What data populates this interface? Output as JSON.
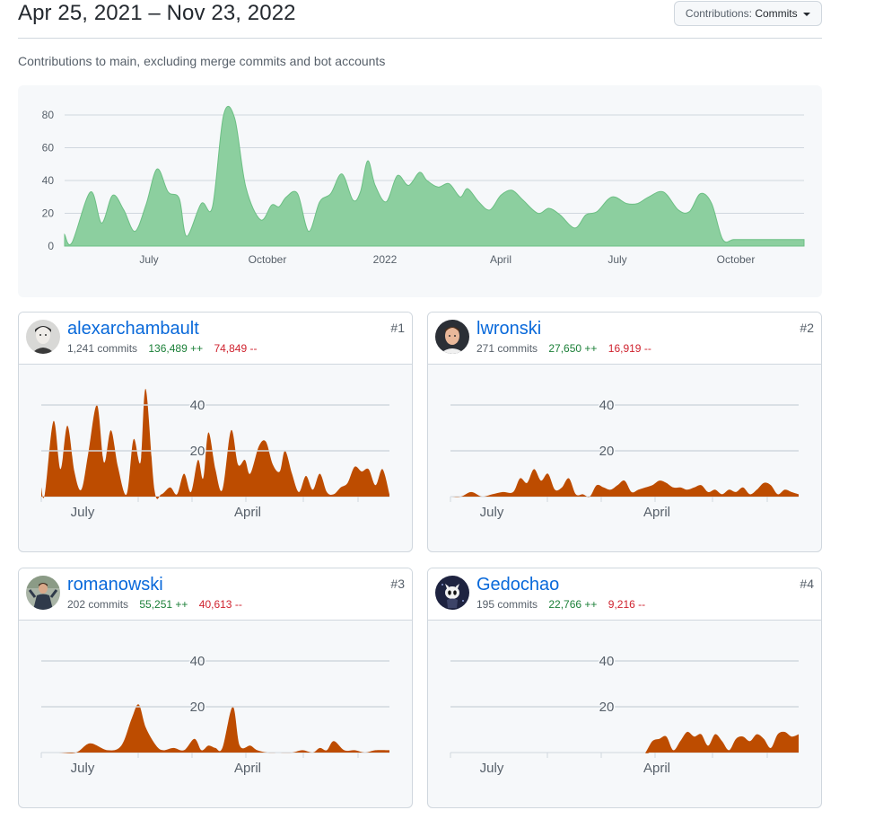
{
  "header": {
    "date_range": "Apr 25, 2021 – Nov 23, 2022",
    "contrib_label": "Contributions:",
    "contrib_value": "Commits"
  },
  "subtitle": "Contributions to main, excluding merge commits and bot accounts",
  "colors": {
    "main_fill": "#8ccf9f",
    "main_stroke": "#6cbf84",
    "user_fill": "#bd4c00",
    "link": "#0969da",
    "add": "#1a7f37",
    "del": "#cf222e"
  },
  "chart_data": [
    {
      "type": "area",
      "title": "Contributions to main, excluding merge commits and bot accounts",
      "x_labels": [
        "July",
        "October",
        "2022",
        "April",
        "July",
        "October"
      ],
      "y_ticks": [
        0,
        20,
        40,
        60,
        80
      ],
      "ylim": [
        0,
        85
      ],
      "x": [
        0,
        0.01,
        0.035,
        0.05,
        0.065,
        0.08,
        0.095,
        0.11,
        0.125,
        0.14,
        0.155,
        0.165,
        0.185,
        0.2,
        0.215,
        0.23,
        0.245,
        0.265,
        0.28,
        0.29,
        0.3,
        0.315,
        0.33,
        0.345,
        0.36,
        0.375,
        0.39,
        0.4,
        0.41,
        0.42,
        0.435,
        0.45,
        0.465,
        0.48,
        0.49,
        0.505,
        0.52,
        0.535,
        0.545,
        0.56,
        0.575,
        0.59,
        0.605,
        0.62,
        0.64,
        0.655,
        0.67,
        0.69,
        0.705,
        0.72,
        0.74,
        0.76,
        0.775,
        0.79,
        0.81,
        0.83,
        0.845,
        0.86,
        0.875,
        0.89,
        0.905,
        0.925,
        0.945,
        0.96,
        0.975,
        0.985,
        1
      ],
      "values": [
        7,
        2,
        33,
        14,
        31,
        22,
        9,
        25,
        47,
        33,
        29,
        6,
        26,
        24,
        80,
        78,
        36,
        16,
        25,
        24,
        30,
        32,
        9,
        27,
        32,
        44,
        28,
        33,
        52,
        37,
        27,
        43,
        37,
        45,
        40,
        36,
        38,
        30,
        35,
        27,
        22,
        31,
        34,
        28,
        20,
        23,
        19,
        11,
        19,
        21,
        30,
        26,
        26,
        30,
        33,
        22,
        21,
        32,
        26,
        4,
        4,
        4,
        4,
        4,
        4,
        4,
        4
      ]
    },
    {
      "type": "area",
      "series": "alexarchambault",
      "x_labels": [
        "July",
        "April"
      ],
      "y_ticks": [
        20,
        40
      ],
      "ylim": [
        0,
        48
      ],
      "x": [
        0,
        0.01,
        0.035,
        0.055,
        0.075,
        0.095,
        0.115,
        0.135,
        0.16,
        0.18,
        0.2,
        0.22,
        0.245,
        0.265,
        0.285,
        0.3,
        0.325,
        0.345,
        0.37,
        0.39,
        0.41,
        0.43,
        0.45,
        0.465,
        0.48,
        0.5,
        0.52,
        0.545,
        0.565,
        0.585,
        0.6,
        0.625,
        0.645,
        0.665,
        0.685,
        0.7,
        0.72,
        0.74,
        0.76,
        0.78,
        0.8,
        0.82,
        0.84,
        0.86,
        0.88,
        0.9,
        0.92,
        0.94,
        0.96,
        0.98,
        1
      ],
      "values": [
        4,
        1,
        33,
        12,
        31,
        11,
        3,
        19,
        40,
        15,
        29,
        13,
        1,
        25,
        15,
        47,
        3,
        1,
        4,
        1,
        10,
        2,
        16,
        8,
        28,
        12,
        3,
        29,
        14,
        16,
        10,
        22,
        24,
        14,
        11,
        20,
        10,
        2,
        9,
        3,
        10,
        2,
        1,
        4,
        6,
        13,
        11,
        12,
        5,
        12,
        1
      ]
    },
    {
      "type": "area",
      "series": "lwronski",
      "x_labels": [
        "July",
        "April"
      ],
      "y_ticks": [
        20,
        40
      ],
      "ylim": [
        0,
        48
      ],
      "x": [
        0,
        0.03,
        0.06,
        0.09,
        0.12,
        0.15,
        0.18,
        0.2,
        0.22,
        0.24,
        0.26,
        0.28,
        0.3,
        0.32,
        0.34,
        0.36,
        0.38,
        0.4,
        0.42,
        0.44,
        0.46,
        0.48,
        0.5,
        0.52,
        0.54,
        0.56,
        0.58,
        0.6,
        0.62,
        0.64,
        0.66,
        0.68,
        0.7,
        0.72,
        0.74,
        0.76,
        0.78,
        0.8,
        0.82,
        0.84,
        0.86,
        0.88,
        0.9,
        0.92,
        0.94,
        0.96,
        0.98,
        1
      ],
      "values": [
        0,
        0,
        2,
        0,
        1,
        2,
        2,
        8,
        6,
        12,
        7,
        10,
        3,
        4,
        8,
        1,
        1,
        0,
        5,
        4,
        3,
        5,
        7,
        2,
        3,
        4,
        5,
        7,
        6,
        4,
        4,
        3,
        4,
        5,
        2,
        3,
        1,
        3,
        2,
        4,
        1,
        3,
        6,
        5,
        1,
        3,
        2,
        1
      ]
    },
    {
      "type": "area",
      "series": "romanowski",
      "x_labels": [
        "July",
        "April"
      ],
      "y_ticks": [
        20,
        40
      ],
      "ylim": [
        0,
        48
      ],
      "x": [
        0,
        0.05,
        0.1,
        0.14,
        0.19,
        0.23,
        0.26,
        0.28,
        0.3,
        0.33,
        0.35,
        0.38,
        0.41,
        0.44,
        0.46,
        0.48,
        0.5,
        0.52,
        0.55,
        0.57,
        0.6,
        0.62,
        0.65,
        0.68,
        0.72,
        0.75,
        0.78,
        0.8,
        0.82,
        0.84,
        0.87,
        0.9,
        0.93,
        0.96,
        1
      ],
      "values": [
        0,
        0,
        0,
        4,
        1,
        3,
        15,
        21,
        11,
        3,
        1,
        2,
        1,
        6,
        1,
        3,
        2,
        2,
        20,
        3,
        3,
        1,
        0,
        0,
        0,
        1,
        0,
        2,
        1,
        5,
        1,
        1,
        0,
        1,
        1
      ]
    },
    {
      "type": "area",
      "series": "Gedochao",
      "x_labels": [
        "July",
        "April"
      ],
      "y_ticks": [
        20,
        40
      ],
      "ylim": [
        0,
        48
      ],
      "x": [
        0,
        0.3,
        0.55,
        0.56,
        0.58,
        0.6,
        0.62,
        0.64,
        0.66,
        0.68,
        0.7,
        0.72,
        0.74,
        0.76,
        0.78,
        0.8,
        0.82,
        0.84,
        0.86,
        0.88,
        0.9,
        0.92,
        0.94,
        0.96,
        0.98,
        1
      ],
      "values": [
        0,
        0,
        0,
        0,
        5,
        6,
        7,
        1,
        5,
        9,
        7,
        8,
        3,
        8,
        5,
        1,
        6,
        7,
        5,
        8,
        6,
        2,
        8,
        9,
        7,
        8
      ]
    }
  ],
  "cards": [
    {
      "username": "alexarchambault",
      "commits": "1,241 commits",
      "additions": "136,489 ++",
      "deletions": "74,849 --",
      "rank": "#1",
      "avatar_icon": "avatar-alexarchambault"
    },
    {
      "username": "lwronski",
      "commits": "271 commits",
      "additions": "27,650 ++",
      "deletions": "16,919 --",
      "rank": "#2",
      "avatar_icon": "avatar-lwronski"
    },
    {
      "username": "romanowski",
      "commits": "202 commits",
      "additions": "55,251 ++",
      "deletions": "40,613 --",
      "rank": "#3",
      "avatar_icon": "avatar-romanowski"
    },
    {
      "username": "Gedochao",
      "commits": "195 commits",
      "additions": "22,766 ++",
      "deletions": "9,216 --",
      "rank": "#4",
      "avatar_icon": "avatar-gedochao"
    }
  ]
}
